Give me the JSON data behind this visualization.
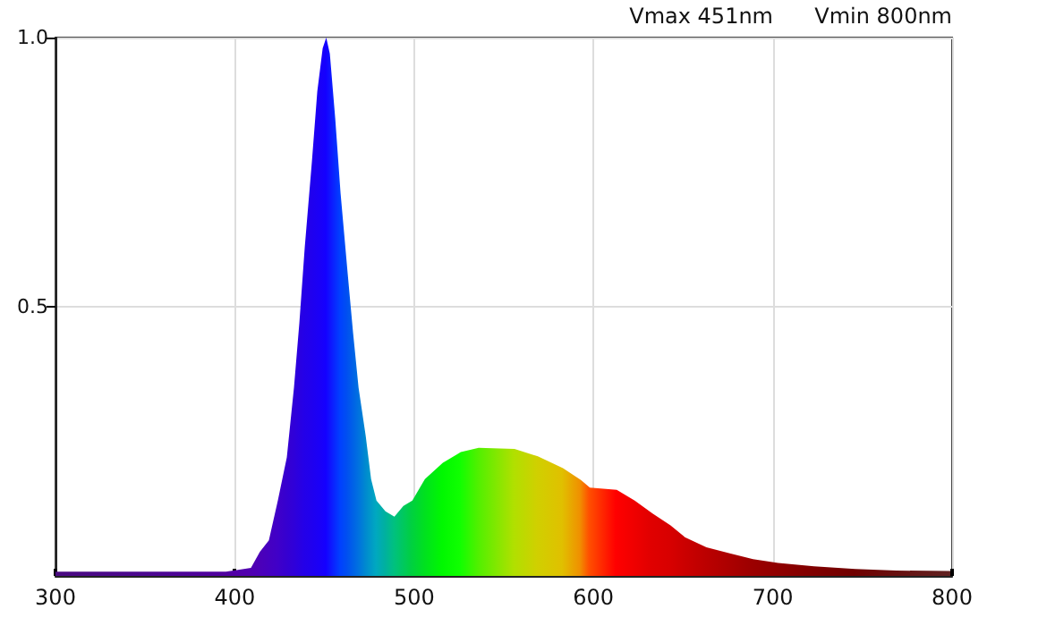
{
  "chart_data": {
    "type": "area",
    "x": [
      300,
      350,
      395,
      401,
      409,
      414,
      419,
      424,
      429,
      433,
      436,
      439,
      443,
      446,
      449,
      451,
      453,
      456,
      459,
      463,
      466,
      469,
      473,
      476,
      479,
      484,
      489,
      494,
      499,
      506,
      516,
      526,
      536,
      556,
      569,
      583,
      593,
      598,
      613,
      623,
      633,
      643,
      651,
      663,
      676,
      689,
      703,
      723,
      746,
      769,
      799
    ],
    "values": [
      0.008,
      0.008,
      0.008,
      0.011,
      0.015,
      0.045,
      0.066,
      0.14,
      0.22,
      0.35,
      0.47,
      0.61,
      0.77,
      0.9,
      0.98,
      1.0,
      0.97,
      0.85,
      0.71,
      0.56,
      0.45,
      0.35,
      0.26,
      0.18,
      0.14,
      0.12,
      0.11,
      0.13,
      0.14,
      0.18,
      0.21,
      0.23,
      0.238,
      0.236,
      0.222,
      0.2,
      0.178,
      0.164,
      0.16,
      0.14,
      0.116,
      0.094,
      0.072,
      0.053,
      0.042,
      0.031,
      0.024,
      0.018,
      0.013,
      0.01,
      0.009
    ],
    "colors": [
      "#4a0a80",
      "#4c0890",
      "#5000a0",
      "#5200a8",
      "#5000b0",
      "#4c00b8",
      "#4600c0",
      "#4000c8",
      "#3600d0",
      "#3000d8",
      "#2a00e0",
      "#2400e8",
      "#2000ee",
      "#1c00f4",
      "#1800fa",
      "#1400ff",
      "#1010ff",
      "#0828ff",
      "#0040ff",
      "#0050f0",
      "#0060e8",
      "#0070e0",
      "#0088d0",
      "#0098c8",
      "#00a8c0",
      "#00b0a0",
      "#00c080",
      "#00c860",
      "#00d040",
      "#00e020",
      "#00f800",
      "#10ff00",
      "#50f000",
      "#b0e000",
      "#d0d000",
      "#e0c000",
      "#f09000",
      "#ff5000",
      "#ff0000",
      "#f00000",
      "#e00000",
      "#d80000",
      "#cc0000",
      "#bc0000",
      "#ac0000",
      "#9c0000",
      "#900000",
      "#800000",
      "#700000",
      "#681010",
      "#602020"
    ],
    "xlim": [
      300,
      800
    ],
    "xticks": [
      300,
      400,
      500,
      600,
      700,
      800
    ],
    "ylim": [
      0,
      1
    ],
    "yticks": [
      {
        "value": 0.5,
        "label": "0.5"
      },
      {
        "value": 1,
        "label": "1.0"
      }
    ],
    "grid": true,
    "annotations": [
      "Vmax 451nm",
      "Vmin 800nm"
    ]
  }
}
